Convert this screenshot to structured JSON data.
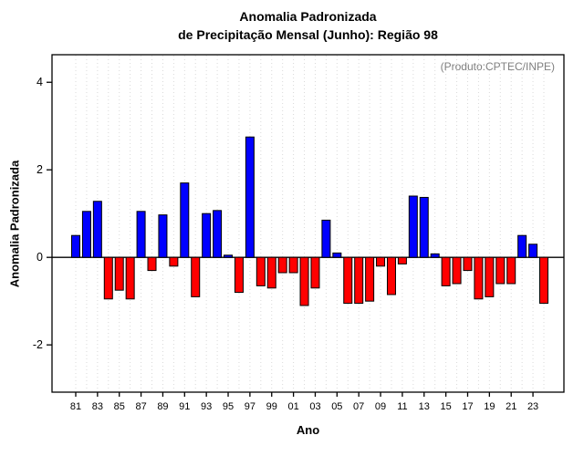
{
  "title_line1": "Anomalia Padronizada",
  "title_line2": "de Precipitação Mensal (Junho): Região 98",
  "chart_data": {
    "type": "bar",
    "title": "Anomalia Padronizada de Precipitação Mensal (Junho): Região 98",
    "xlabel": "Ano",
    "ylabel": "Anomalia Padronizada",
    "annotation": "(Produto:CPTEC/INPE)",
    "grid": "dotted-vertical",
    "legend": "none",
    "ylim": [
      -3.08,
      4.63
    ],
    "y_ticks": [
      -2,
      0,
      2,
      4
    ],
    "x_tick_labels": [
      "81",
      "83",
      "85",
      "87",
      "89",
      "91",
      "93",
      "95",
      "97",
      "99",
      "01",
      "03",
      "05",
      "07",
      "09",
      "11",
      "13",
      "15",
      "17",
      "19",
      "21",
      "23"
    ],
    "years": [
      1981,
      1982,
      1983,
      1984,
      1985,
      1986,
      1987,
      1988,
      1989,
      1990,
      1991,
      1992,
      1993,
      1994,
      1995,
      1996,
      1997,
      1998,
      1999,
      2000,
      2001,
      2002,
      2003,
      2004,
      2005,
      2006,
      2007,
      2008,
      2009,
      2010,
      2011,
      2012,
      2013,
      2014,
      2015,
      2016,
      2017,
      2018,
      2019,
      2020,
      2021,
      2022,
      2023,
      2024
    ],
    "values": [
      0.5,
      1.05,
      1.28,
      -0.95,
      -0.75,
      -0.95,
      1.05,
      -0.3,
      0.97,
      -0.2,
      1.7,
      -0.9,
      1.0,
      1.07,
      0.05,
      -0.8,
      2.75,
      -0.65,
      -0.7,
      -0.35,
      -0.35,
      -1.1,
      -0.7,
      0.85,
      0.1,
      -1.05,
      -1.05,
      -1.0,
      -0.2,
      -0.85,
      -0.15,
      1.4,
      1.37,
      0.08,
      -0.65,
      -0.6,
      -0.3,
      -0.95,
      -0.9,
      -0.6,
      -0.6,
      0.5,
      0.3,
      -1.05
    ],
    "positive_color": "#0000FF",
    "negative_color": "#FF0000",
    "bar_border_color": "#000000",
    "gridline_color": "#d9d9d9"
  }
}
